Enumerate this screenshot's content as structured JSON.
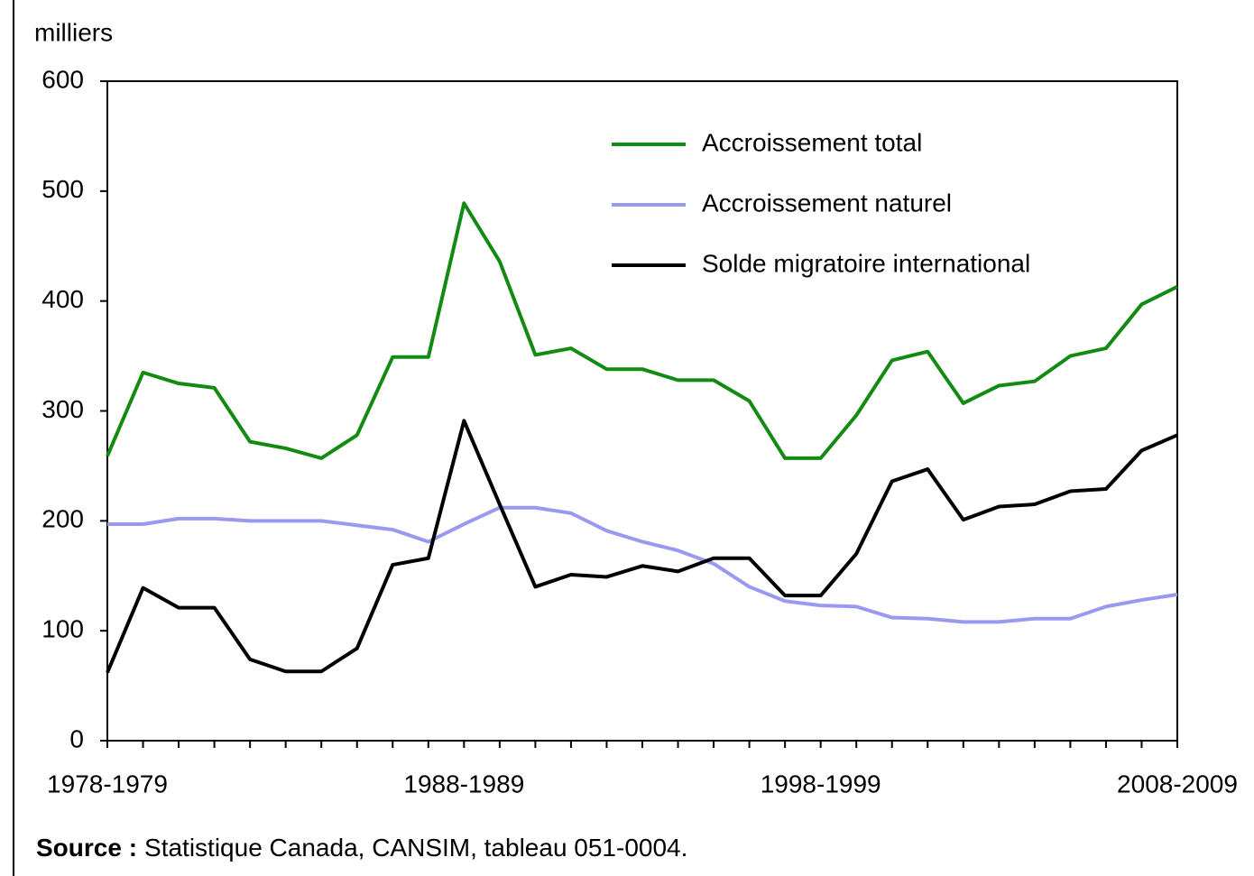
{
  "chart_data": {
    "type": "line",
    "y_label": "milliers",
    "categories": [
      "1978-1979",
      null,
      null,
      null,
      null,
      null,
      null,
      null,
      null,
      null,
      "1988-1989",
      null,
      null,
      null,
      null,
      null,
      null,
      null,
      null,
      null,
      "1998-1999",
      null,
      null,
      null,
      null,
      null,
      null,
      null,
      null,
      null,
      "2008-2009"
    ],
    "series": [
      {
        "name": "Accroissement total",
        "color": "#138b13",
        "values": [
          259,
          335,
          325,
          321,
          272,
          266,
          257,
          278,
          349,
          349,
          489,
          436,
          351,
          357,
          338,
          338,
          328,
          328,
          309,
          257,
          257,
          296,
          346,
          354,
          307,
          323,
          327,
          350,
          357,
          397,
          413
        ]
      },
      {
        "name": "Accroissement naturel",
        "color": "#9999f2",
        "values": [
          197,
          197,
          202,
          202,
          200,
          200,
          200,
          196,
          192,
          181,
          197,
          212,
          212,
          207,
          191,
          181,
          173,
          161,
          140,
          127,
          123,
          122,
          112,
          111,
          108,
          108,
          111,
          111,
          122,
          128,
          133
        ]
      },
      {
        "name": "Solde migratoire international",
        "color": "#000000",
        "values": [
          62,
          139,
          121,
          121,
          74,
          63,
          63,
          84,
          160,
          166,
          291,
          215,
          140,
          151,
          149,
          159,
          154,
          166,
          166,
          132,
          132,
          170,
          236,
          247,
          201,
          213,
          215,
          227,
          229,
          264,
          278
        ]
      }
    ],
    "ylim": [
      0,
      600
    ],
    "yticks": [
      0,
      100,
      200,
      300,
      400,
      500,
      600
    ],
    "legend": "top-right",
    "source_label": "Source :",
    "source_text": "Statistique Canada, CANSIM, tableau 051-0004."
  }
}
